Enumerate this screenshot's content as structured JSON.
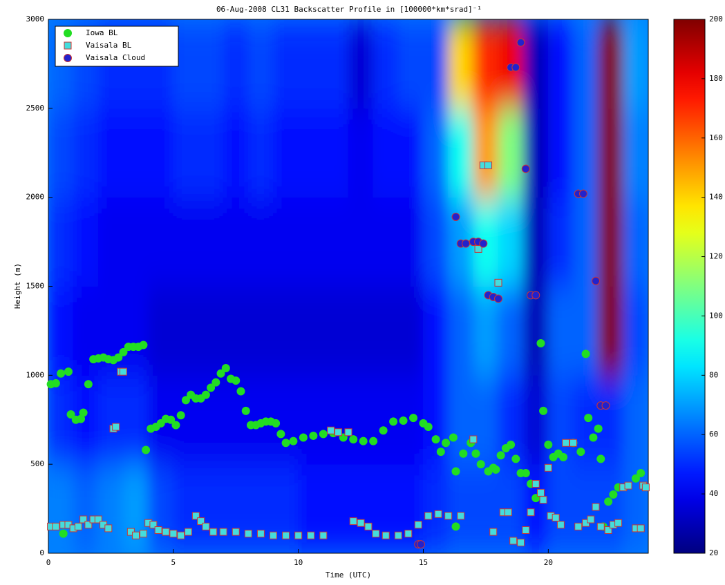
{
  "chart_data": {
    "type": "heatmap",
    "title": "06-Aug-2008 CL31 Backscatter Profile in [100000*km*srad]⁻¹",
    "xlabel": "Time (UTC)",
    "ylabel": "Height (m)",
    "xlim": [
      0,
      24
    ],
    "xticks": [
      0,
      5,
      10,
      15,
      20
    ],
    "ylim": [
      0,
      3000
    ],
    "yticks": [
      0,
      500,
      1000,
      1500,
      2000,
      2500,
      3000
    ],
    "colormap": "jet",
    "clim": [
      20,
      200
    ],
    "cticks": [
      20,
      40,
      60,
      80,
      100,
      120,
      140,
      160,
      180,
      200
    ],
    "legend": "upper left",
    "cell_x": [
      0,
      1,
      2,
      3,
      4,
      5,
      6,
      7,
      8,
      9,
      10,
      11,
      12,
      13,
      14,
      15,
      16,
      17,
      18,
      19,
      20,
      21,
      22,
      23,
      24
    ],
    "cell_y": [
      0,
      500,
      1000,
      1500,
      2000,
      2500,
      3000
    ],
    "z": [
      [
        65,
        50,
        45,
        50,
        55,
        60
      ],
      [
        60,
        45,
        40,
        45,
        50,
        55
      ],
      [
        65,
        50,
        40,
        40,
        45,
        50
      ],
      [
        70,
        50,
        40,
        40,
        45,
        50
      ],
      [
        55,
        40,
        35,
        40,
        45,
        50
      ],
      [
        50,
        40,
        35,
        40,
        50,
        55
      ],
      [
        50,
        40,
        35,
        40,
        50,
        55
      ],
      [
        50,
        40,
        35,
        40,
        45,
        50
      ],
      [
        50,
        40,
        35,
        40,
        50,
        55
      ],
      [
        50,
        40,
        35,
        40,
        45,
        50
      ],
      [
        45,
        40,
        35,
        40,
        45,
        50
      ],
      [
        45,
        40,
        35,
        40,
        45,
        50
      ],
      [
        45,
        40,
        35,
        40,
        40,
        35
      ],
      [
        45,
        40,
        35,
        40,
        45,
        50
      ],
      [
        45,
        40,
        35,
        40,
        45,
        55
      ],
      [
        50,
        45,
        45,
        55,
        60,
        55
      ],
      [
        55,
        60,
        60,
        70,
        90,
        140
      ],
      [
        55,
        60,
        70,
        90,
        150,
        170
      ],
      [
        55,
        50,
        60,
        80,
        110,
        180
      ],
      [
        45,
        35,
        30,
        30,
        30,
        30
      ],
      [
        55,
        55,
        60,
        50,
        45,
        45
      ],
      [
        55,
        50,
        60,
        60,
        60,
        60
      ],
      [
        55,
        50,
        200,
        200,
        200,
        200
      ],
      [
        60,
        60,
        55,
        60,
        65,
        70
      ]
    ],
    "series": [
      {
        "name": "Iowa BL",
        "marker": "circle",
        "color": "#22dd22",
        "x": [
          0.1,
          0.3,
          0.5,
          0.8,
          0.6,
          0.9,
          1.1,
          1.3,
          1.4,
          1.6,
          1.8,
          2.0,
          2.2,
          2.4,
          2.6,
          2.8,
          3.0,
          3.2,
          3.4,
          3.6,
          3.8,
          3.9,
          4.1,
          4.3,
          4.5,
          4.7,
          4.9,
          5.1,
          5.3,
          5.5,
          5.7,
          5.9,
          6.1,
          6.3,
          6.5,
          6.7,
          6.9,
          7.1,
          7.3,
          7.5,
          7.7,
          7.9,
          8.1,
          8.3,
          8.5,
          8.7,
          8.9,
          9.1,
          9.3,
          9.5,
          9.8,
          10.2,
          10.6,
          11,
          11.4,
          11.8,
          12.2,
          12.6,
          13,
          13.4,
          13.8,
          14.2,
          14.6,
          15,
          15.2,
          15.5,
          15.7,
          15.9,
          16.2,
          16.3,
          16.6,
          16.9,
          17.1,
          17.3,
          17.6,
          17.8,
          17.9,
          18.1,
          18.3,
          18.5,
          18.7,
          18.9,
          19.1,
          19.3,
          19.5,
          19.7,
          19.8,
          20,
          20.2,
          20.4,
          20.6,
          21,
          21.3,
          21.5,
          21.6,
          21.8,
          22,
          22.1,
          22.2,
          22.4,
          22.6,
          22.8,
          23.5,
          23.7,
          16.3
        ],
        "values": [
          950,
          955,
          1010,
          1020,
          110,
          780,
          750,
          755,
          790,
          950,
          1090,
          1095,
          1100,
          1090,
          1085,
          1100,
          1130,
          1160,
          1160,
          1160,
          1170,
          580,
          700,
          710,
          730,
          755,
          750,
          720,
          775,
          860,
          890,
          870,
          870,
          890,
          930,
          960,
          1010,
          1040,
          980,
          970,
          910,
          800,
          720,
          720,
          730,
          740,
          740,
          730,
          670,
          620,
          630,
          650,
          660,
          670,
          675,
          650,
          640,
          630,
          630,
          690,
          740,
          745,
          760,
          730,
          710,
          640,
          570,
          620,
          650,
          460,
          560,
          620,
          560,
          500,
          460,
          480,
          470,
          550,
          590,
          610,
          530,
          450,
          450,
          390,
          310,
          1180,
          800,
          610,
          540,
          560,
          540,
          620,
          570,
          1120,
          760,
          650,
          700,
          530,
          150,
          290,
          330,
          370,
          420,
          450,
          150
        ]
      },
      {
        "name": "Vaisala BL",
        "marker": "square",
        "color": "#44dddd",
        "edgecolor": "#cc3333",
        "x": [
          0.1,
          0.3,
          0.6,
          0.8,
          1.0,
          1.2,
          1.4,
          1.6,
          1.8,
          2.0,
          2.2,
          2.4,
          2.6,
          2.7,
          2.9,
          3.0,
          3.3,
          3.5,
          3.8,
          4.0,
          4.2,
          4.4,
          4.7,
          5.0,
          5.3,
          5.6,
          5.9,
          6.1,
          6.3,
          6.6,
          7,
          7.5,
          8,
          8.5,
          9,
          9.5,
          10,
          10.5,
          11,
          11.3,
          11.6,
          12,
          12.2,
          12.5,
          12.8,
          13.1,
          13.5,
          14,
          14.4,
          14.8,
          15.2,
          15.6,
          16,
          16.5,
          17,
          17.2,
          17.4,
          17.6,
          17.8,
          18,
          18.2,
          18.4,
          18.6,
          18.9,
          19.1,
          19.3,
          19.5,
          19.7,
          19.8,
          20,
          20.1,
          20.3,
          20.5,
          20.7,
          21,
          21.2,
          21.5,
          21.7,
          21.9,
          22.1,
          22.4,
          22.6,
          22.8,
          23,
          23.2,
          23.5,
          23.7,
          23.8,
          23.9
        ],
        "values": [
          150,
          150,
          160,
          160,
          140,
          150,
          190,
          160,
          190,
          190,
          160,
          140,
          700,
          710,
          1020,
          1020,
          120,
          100,
          110,
          170,
          160,
          130,
          120,
          110,
          100,
          120,
          210,
          180,
          150,
          120,
          120,
          120,
          110,
          110,
          100,
          100,
          100,
          100,
          100,
          690,
          680,
          680,
          180,
          170,
          150,
          110,
          100,
          100,
          110,
          160,
          210,
          220,
          210,
          210,
          640,
          1710,
          2180,
          2180,
          120,
          1520,
          230,
          230,
          70,
          60,
          130,
          230,
          390,
          340,
          300,
          480,
          210,
          200,
          160,
          620,
          620,
          150,
          170,
          190,
          260,
          150,
          130,
          160,
          170,
          370,
          380,
          140,
          140,
          380,
          370
        ]
      },
      {
        "name": "Vaisala Cloud",
        "marker": "circle",
        "color": "#2222cc",
        "edgecolor": "#cc3333",
        "x": [
          14.8,
          14.9,
          16.3,
          16.5,
          16.7,
          17.0,
          17.2,
          17.4,
          17.6,
          17.8,
          18.0,
          18.5,
          18.7,
          18.9,
          19.1,
          19.3,
          19.5,
          21.2,
          21.4,
          21.9,
          22.1,
          22.3
        ],
        "values": [
          50,
          50,
          1890,
          1740,
          1740,
          1750,
          1750,
          1740,
          1450,
          1440,
          1430,
          2730,
          2730,
          2870,
          2160,
          1450,
          1450,
          2020,
          2020,
          1530,
          830,
          830
        ]
      }
    ]
  }
}
